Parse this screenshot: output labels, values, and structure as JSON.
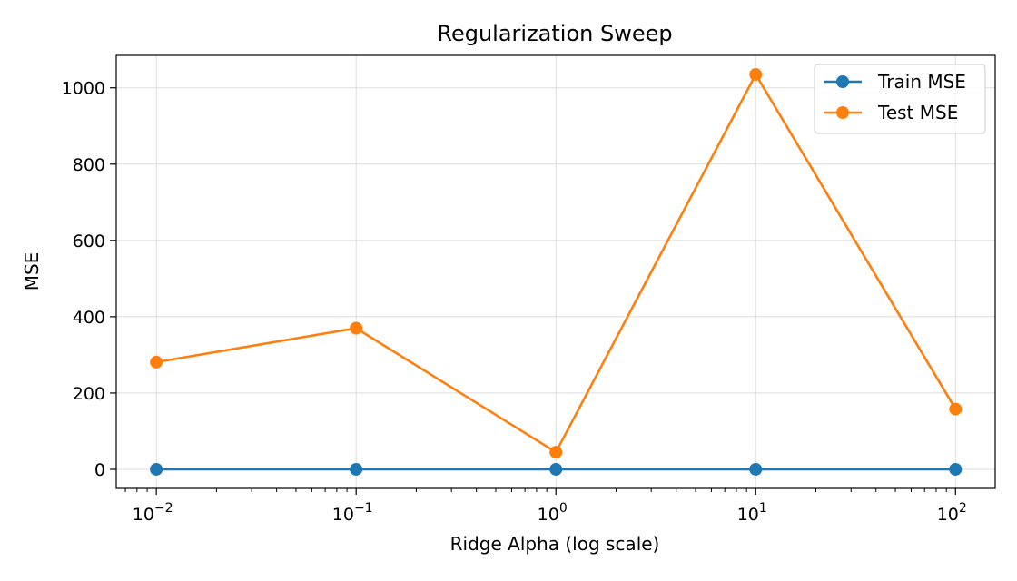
{
  "chart_data": {
    "type": "line",
    "title": "Regularization Sweep",
    "xlabel": "Ridge Alpha (log scale)",
    "ylabel": "MSE",
    "x_scale": "log",
    "x": [
      0.01,
      0.1,
      1,
      10,
      100
    ],
    "xlim": [
      0.0063,
      158
    ],
    "ylim": [
      -50,
      1085
    ],
    "x_ticks": [
      {
        "value": 0.01,
        "base": "10",
        "exp": "−2"
      },
      {
        "value": 0.1,
        "base": "10",
        "exp": "−1"
      },
      {
        "value": 1,
        "base": "10",
        "exp": "0"
      },
      {
        "value": 10,
        "base": "10",
        "exp": "1"
      },
      {
        "value": 100,
        "base": "10",
        "exp": "2"
      }
    ],
    "y_ticks": [
      {
        "value": 0,
        "label": "0"
      },
      {
        "value": 200,
        "label": "200"
      },
      {
        "value": 400,
        "label": "400"
      },
      {
        "value": 600,
        "label": "600"
      },
      {
        "value": 800,
        "label": "800"
      },
      {
        "value": 1000,
        "label": "1000"
      }
    ],
    "grid": true,
    "legend_position": "top-right",
    "series": [
      {
        "name": "Train MSE",
        "color": "#1f77b4",
        "marker": "circle",
        "values": [
          0,
          0,
          0,
          0,
          0
        ]
      },
      {
        "name": "Test MSE",
        "color": "#ff7f0e",
        "marker": "circle",
        "values": [
          281,
          370,
          45,
          1035,
          158
        ]
      }
    ]
  }
}
